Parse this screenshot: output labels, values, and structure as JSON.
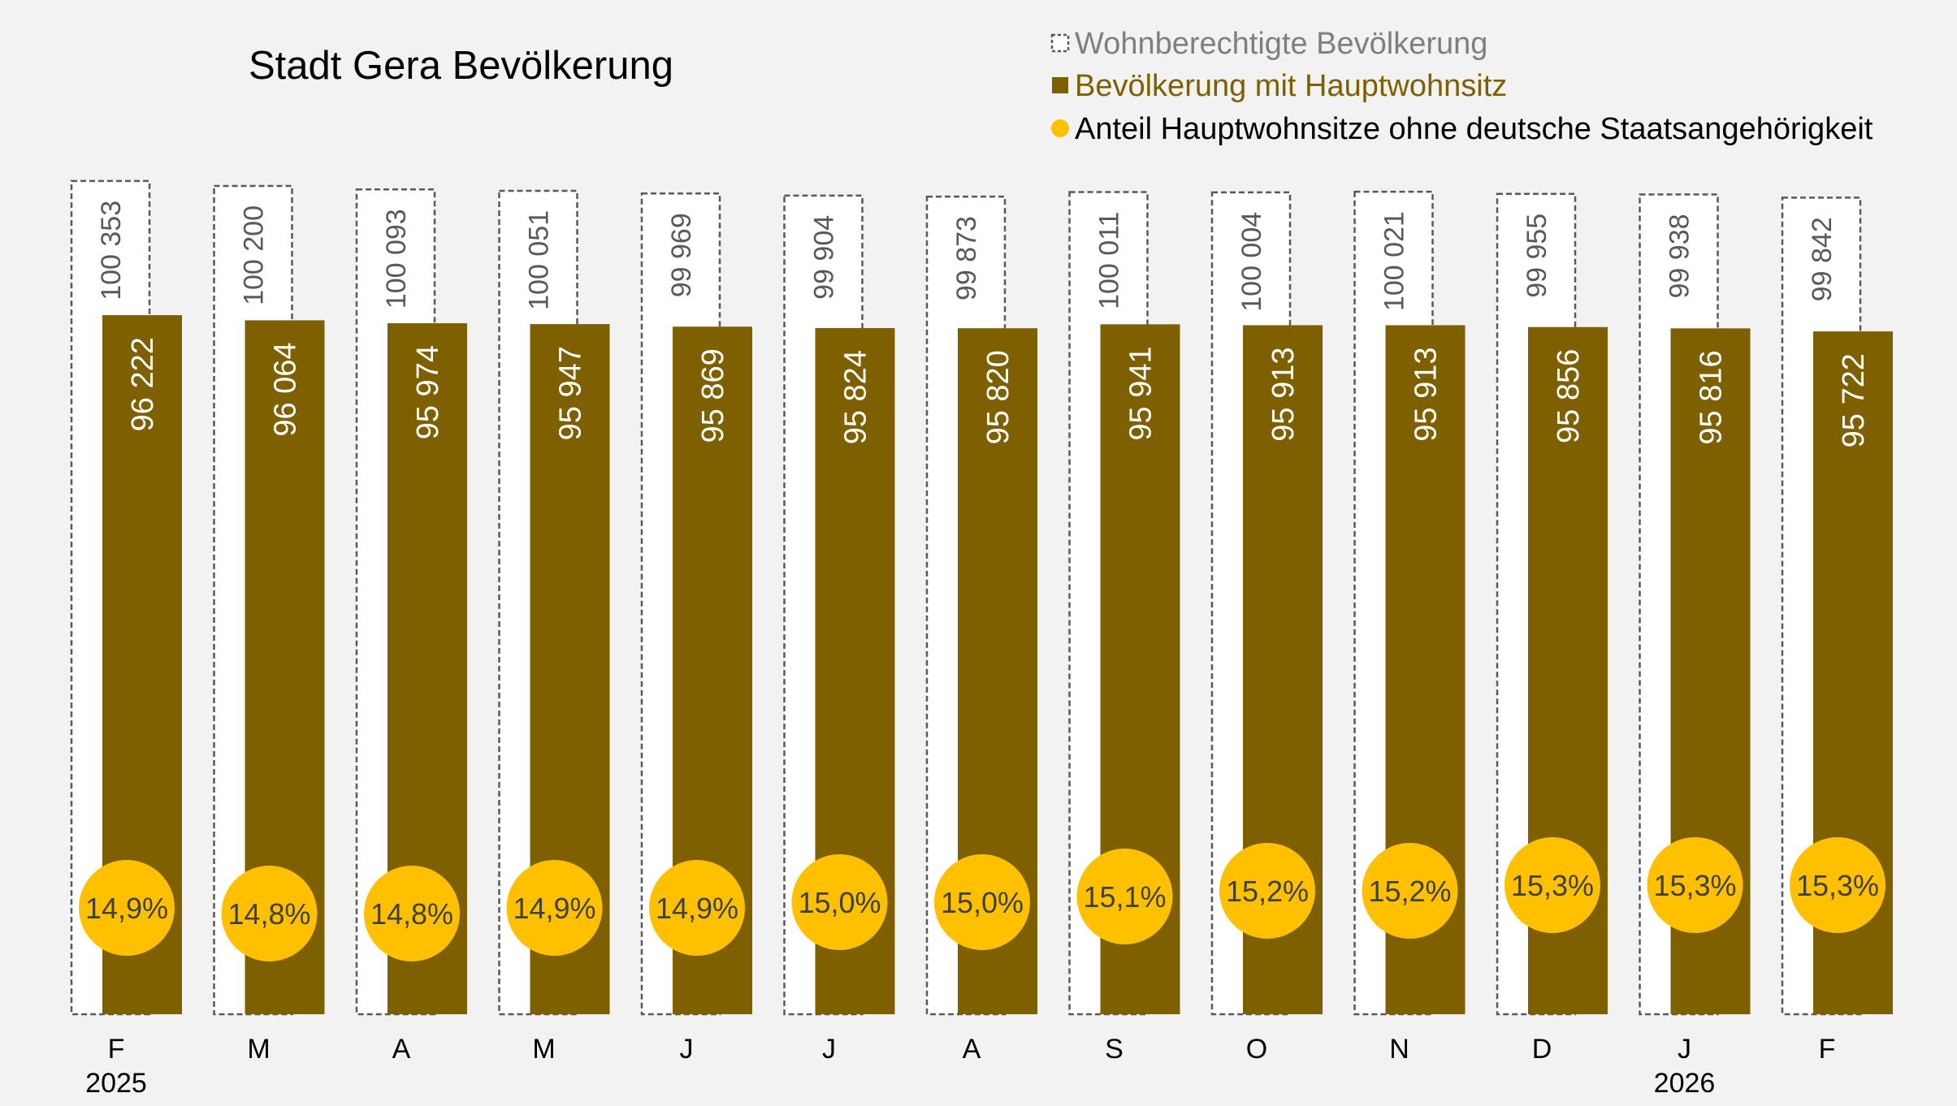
{
  "chart_data": {
    "type": "bar",
    "title": "Stadt Gera Bevölkerung",
    "categories": [
      "F",
      "M",
      "A",
      "M",
      "J",
      "J",
      "A",
      "S",
      "O",
      "N",
      "D",
      "J",
      "F"
    ],
    "year_labels": [
      "2025",
      "",
      "",
      "",
      "",
      "",
      "",
      "",
      "",
      "",
      "",
      "2026",
      ""
    ],
    "series": [
      {
        "name": "Wohnberechtigte Bevölkerung",
        "style": "dashed-outline",
        "color": "#595959",
        "values": [
          100353,
          100200,
          100093,
          100051,
          99969,
          99904,
          99873,
          100011,
          100004,
          100021,
          99955,
          99938,
          99842
        ],
        "labels": [
          "100 353",
          "100 200",
          "100 093",
          "100 051",
          "99 969",
          "99 904",
          "99 873",
          "100 011",
          "100 004",
          "100 021",
          "99 955",
          "99 938",
          "99 842"
        ]
      },
      {
        "name": "Bevölkerung mit Hauptwohnsitz",
        "color": "#7f6000",
        "values": [
          96222,
          96064,
          95974,
          95947,
          95869,
          95824,
          95820,
          95941,
          95913,
          95913,
          95856,
          95816,
          95722
        ],
        "labels": [
          "96 222",
          "96 064",
          "95 974",
          "95 947",
          "95 869",
          "95 824",
          "95 820",
          "95 941",
          "95 913",
          "95 913",
          "95 856",
          "95 816",
          "95 722"
        ]
      },
      {
        "name": "Anteil Hauptwohnsitze ohne deutsche Staatsangehörigkeit",
        "type": "scatter",
        "color": "#ffc000",
        "unit": "%",
        "values": [
          14.9,
          14.8,
          14.8,
          14.9,
          14.9,
          15.0,
          15.0,
          15.1,
          15.2,
          15.2,
          15.3,
          15.3,
          15.3
        ],
        "labels": [
          "14,9%",
          "14,8%",
          "14,8%",
          "14,9%",
          "14,9%",
          "15,0%",
          "15,0%",
          "15,1%",
          "15,2%",
          "15,2%",
          "15,3%",
          "15,3%",
          "15,3%"
        ]
      }
    ],
    "legend_position": "top-right",
    "grid": false,
    "y_axis_visible": false
  }
}
